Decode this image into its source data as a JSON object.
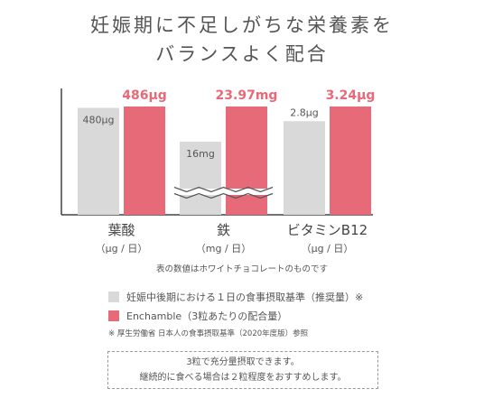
{
  "title_line1": "妊娠期に不足しがちな栄養素を",
  "title_line2": "バランスよく配合",
  "chart_data": {
    "type": "bar",
    "categories": [
      {
        "name": "葉酸",
        "unit": "（μg / 日）"
      },
      {
        "name": "鉄",
        "unit": "（mg / 日）"
      },
      {
        "name": "ビタミンB12",
        "unit": "（μg / 日）"
      }
    ],
    "series": [
      {
        "name": "妊娠中後期における１日の食事摂取基準（推奨量）※",
        "color": "#d9d9d9",
        "values": [
          480,
          16,
          2.8
        ],
        "labels": [
          "480μg",
          "16mg",
          "2.8μg"
        ]
      },
      {
        "name": "Enchamble（3粒あたりの配合量）",
        "color": "#e66a78",
        "values": [
          486,
          23.97,
          3.24
        ],
        "labels": [
          "486μg",
          "23.97mg",
          "3.24μg"
        ]
      }
    ],
    "axis_break": "鉄"
  },
  "note": "表の数値はホワイトチョコレートのものです",
  "source": "※ 厚生労働省 日本人の食事摂取基準（2020年度版）参照",
  "dose_line1": "3粒で充分量摂取できます。",
  "dose_line2": "継続的に食べる場合は２粒程度をおすすめします。"
}
